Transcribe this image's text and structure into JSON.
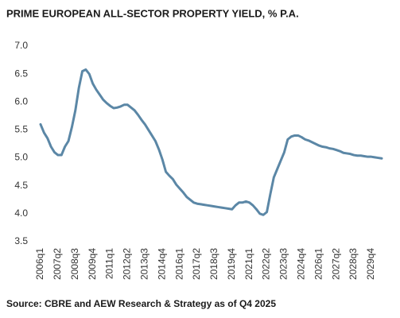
{
  "chart_data": {
    "type": "line",
    "title": "PRIME EUROPEAN ALL-SECTOR PROPERTY YIELD, % P.A.",
    "source": "Source: CBRE and AEW Research & Strategy as of Q4 2025",
    "color": "#5b87a6",
    "categories": [
      "2006q1",
      null,
      null,
      null,
      null,
      "2007q2",
      null,
      null,
      null,
      null,
      "2008q3",
      null,
      null,
      null,
      null,
      "2009q4",
      null,
      null,
      null,
      null,
      "2011q1",
      null,
      null,
      null,
      null,
      "2012q2",
      null,
      null,
      null,
      null,
      "2013q3",
      null,
      null,
      null,
      null,
      "2014q4",
      null,
      null,
      null,
      null,
      "2016q1",
      null,
      null,
      null,
      null,
      "2017q2",
      null,
      null,
      null,
      null,
      "2018q3",
      null,
      null,
      null,
      null,
      "2019q4",
      null,
      null,
      null,
      null,
      "2021q1",
      null,
      null,
      null,
      null,
      "2022q2",
      null,
      null,
      null,
      null,
      "2023q3",
      null,
      null,
      null,
      null,
      "2024q4",
      null,
      null,
      null,
      null,
      "2026q1",
      null,
      null,
      null,
      null,
      "2027q2",
      null,
      null,
      null,
      null,
      "2028q3",
      null,
      null,
      null,
      null,
      "2029q4",
      null,
      null,
      null
    ],
    "values": [
      5.6,
      5.45,
      5.35,
      5.2,
      5.1,
      5.05,
      5.05,
      5.2,
      5.3,
      5.55,
      5.85,
      6.25,
      6.55,
      6.58,
      6.5,
      6.33,
      6.22,
      6.13,
      6.04,
      5.98,
      5.93,
      5.89,
      5.9,
      5.92,
      5.95,
      5.95,
      5.9,
      5.85,
      5.77,
      5.68,
      5.6,
      5.5,
      5.4,
      5.3,
      5.15,
      4.97,
      4.75,
      4.68,
      4.62,
      4.52,
      4.45,
      4.38,
      4.3,
      4.25,
      4.2,
      4.18,
      4.17,
      4.16,
      4.15,
      4.14,
      4.13,
      4.12,
      4.11,
      4.1,
      4.09,
      4.08,
      4.15,
      4.2,
      4.2,
      4.22,
      4.2,
      4.15,
      4.08,
      4.0,
      3.98,
      4.03,
      4.35,
      4.65,
      4.8,
      4.95,
      5.1,
      5.33,
      5.38,
      5.4,
      5.4,
      5.37,
      5.33,
      5.31,
      5.28,
      5.25,
      5.22,
      5.2,
      5.19,
      5.17,
      5.16,
      5.14,
      5.12,
      5.09,
      5.08,
      5.07,
      5.05,
      5.04,
      5.04,
      5.03,
      5.02,
      5.02,
      5.01,
      5.0,
      4.99
    ],
    "ylim": [
      3.5,
      7.0
    ],
    "yticks": [
      3.5,
      {
        "value": 4.0,
        "label": "4.0"
      },
      4.5,
      {
        "value": 5.0,
        "label": "5.0"
      },
      5.5,
      {
        "value": 6.0,
        "label": "6.0"
      },
      6.5,
      {
        "value": 7.0,
        "label": "7.0"
      }
    ]
  }
}
